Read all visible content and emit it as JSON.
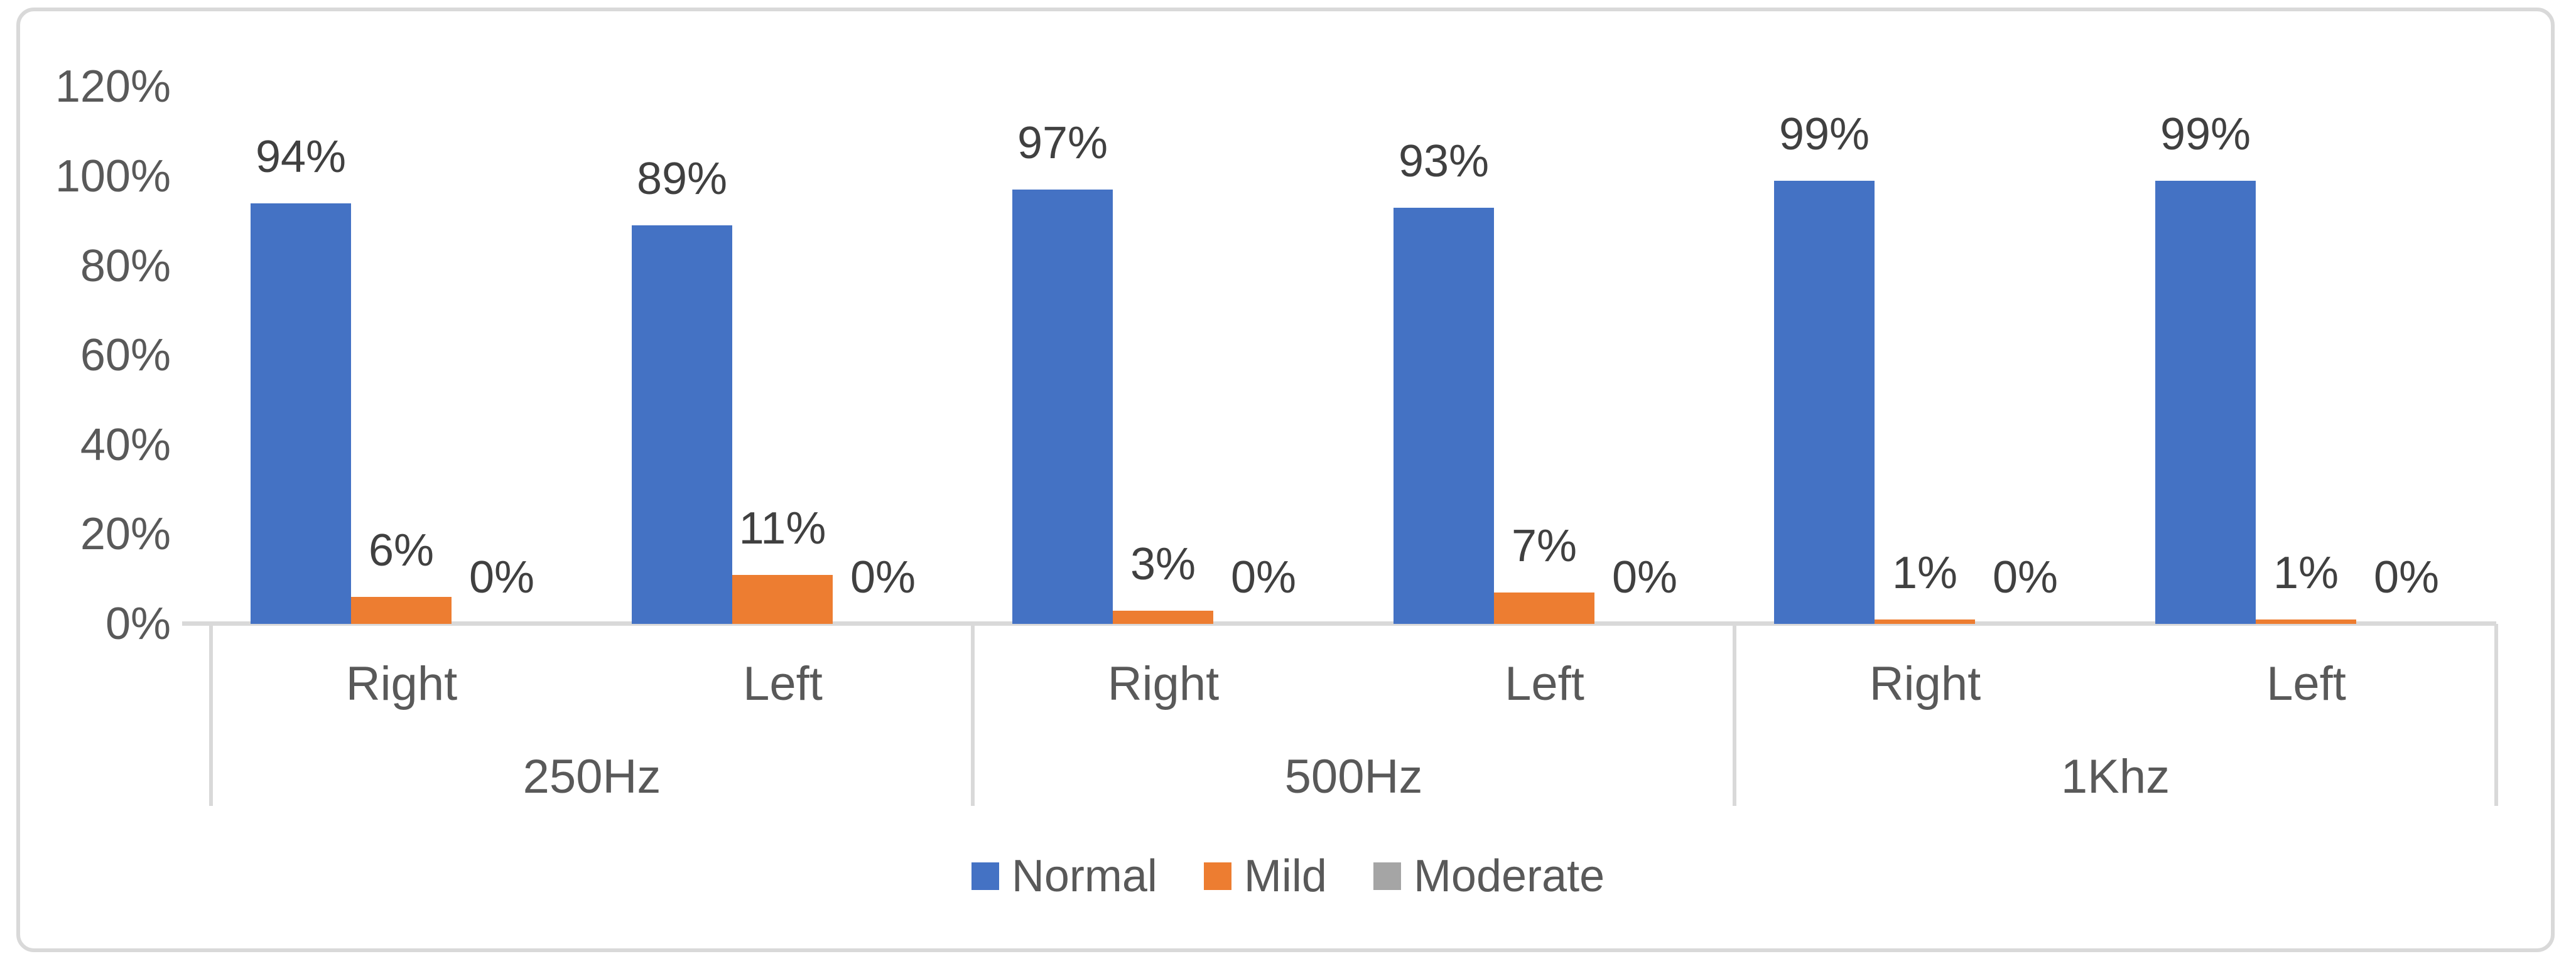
{
  "chart_data": {
    "type": "bar",
    "title": "",
    "series": [
      {
        "name": "Normal",
        "color": "#4472C4",
        "values": [
          94,
          89,
          97,
          93,
          99,
          99
        ]
      },
      {
        "name": "Mild",
        "color": "#ED7D31",
        "values": [
          6,
          11,
          3,
          7,
          1,
          1
        ]
      },
      {
        "name": "Moderate",
        "color": "#A5A5A5",
        "values": [
          0,
          0,
          0,
          0,
          0,
          0
        ]
      }
    ],
    "categories": [
      "Right",
      "Left",
      "Right",
      "Left",
      "Right",
      "Left"
    ],
    "group_labels": [
      "250Hz",
      "500Hz",
      "1Khz"
    ],
    "categories_per_group": 2,
    "y_ticks": [
      0,
      20,
      40,
      60,
      80,
      100,
      120
    ],
    "y_tick_suffix": "%",
    "data_label_suffix": "%",
    "ylim": [
      0,
      120
    ],
    "grid": false,
    "legend_position": "bottom",
    "colors": {
      "axis_line": "#D9D9D9",
      "frame_border": "#D9D9D9",
      "tick_text": "#595959",
      "data_label_text": "#404040",
      "background": "#ffffff"
    }
  }
}
